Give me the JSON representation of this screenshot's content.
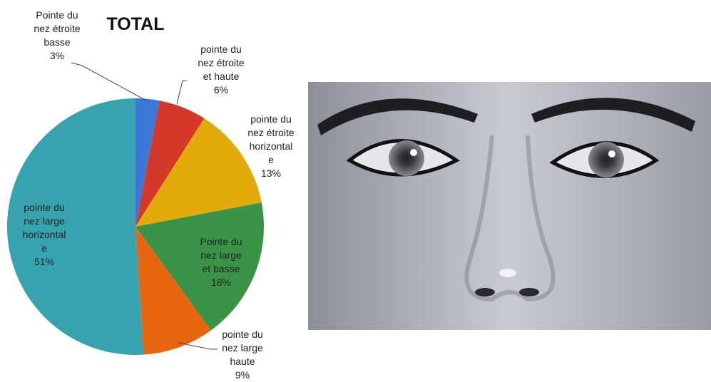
{
  "chart_data": {
    "type": "pie",
    "title": "TOTAL",
    "categories": [
      "Pointe du\nnez étroite\nbasse",
      "pointe du\nnez étroite\net haute",
      "pointe du\nnez étroite\nhorizontal\ne",
      "Pointe du\nnez large\net basse",
      "pointe du\nnez large\nhaute",
      "pointe du\nnez large\nhorizontal\ne"
    ],
    "values": [
      3,
      6,
      13,
      18,
      9,
      51
    ],
    "value_labels": [
      "3%",
      "6%",
      "13%",
      "18%",
      "9%",
      "51%"
    ],
    "colors": [
      "#3b78d8",
      "#d4382b",
      "#e3aa0c",
      "#3a9448",
      "#e8650f",
      "#37a3ae"
    ]
  }
}
